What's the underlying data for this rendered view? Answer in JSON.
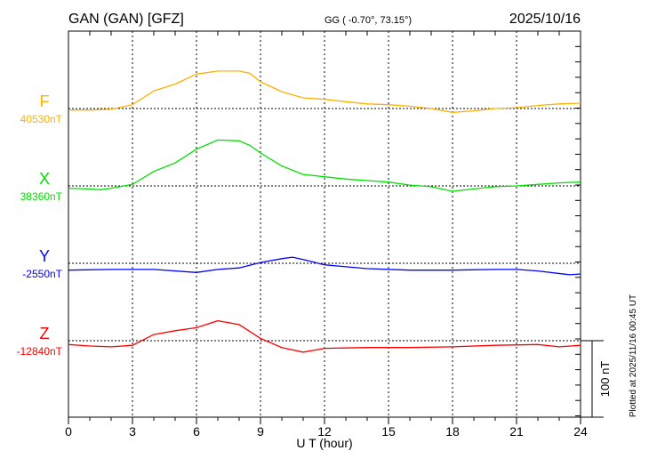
{
  "chart_data": {
    "type": "line",
    "title": "GAN (GAN)  [GFZ]",
    "coordinates": "GG ( -0.70°,  73.15°)",
    "date": "2025/10/16",
    "xlabel": "U T (hour)",
    "xlim": [
      0,
      24
    ],
    "xticks": [
      "0",
      "3",
      "6",
      "9",
      "12",
      "15",
      "18",
      "21",
      "24"
    ],
    "scale_label": "100 nT",
    "scale_nT": 100,
    "footer": "Plotted at 2025/11/16 00:45 UT",
    "grid": true,
    "series": [
      {
        "name": "F",
        "baseline_label": "40530nT",
        "color": "#ffb000",
        "x": [
          0,
          1,
          2,
          3,
          4,
          5,
          6,
          7,
          8,
          8.5,
          9,
          10,
          11,
          12,
          13,
          14,
          15,
          16,
          17,
          18,
          19,
          20,
          21,
          22,
          23,
          24
        ],
        "y": [
          -2,
          -2,
          -1,
          5,
          23,
          32,
          45,
          49,
          49,
          46,
          35,
          22,
          14,
          12,
          9,
          6,
          5,
          3,
          0,
          -5,
          -3,
          0,
          1,
          4,
          6,
          7
        ]
      },
      {
        "name": "X",
        "baseline_label": "38360nT",
        "color": "#00e000",
        "x": [
          0,
          1,
          1.5,
          2,
          3,
          4,
          5,
          6,
          7,
          8,
          8.5,
          9,
          10,
          11,
          12,
          13,
          14,
          15,
          16,
          17,
          18,
          19,
          20,
          21,
          22,
          23,
          24
        ],
        "y": [
          -3,
          -4,
          -5,
          -3,
          2,
          19,
          30,
          48,
          60,
          59,
          53,
          43,
          26,
          15,
          12,
          9,
          7,
          5,
          1,
          -1,
          -7,
          -4,
          -1,
          0,
          2,
          4,
          5
        ]
      },
      {
        "name": "Y",
        "baseline_label": "-2550nT",
        "color": "#0000ff",
        "x": [
          0,
          2,
          4,
          6,
          7,
          8,
          9,
          10,
          10.5,
          11,
          12,
          14,
          16,
          18,
          20,
          21,
          22,
          23.5,
          24
        ],
        "y": [
          -9,
          -8,
          -8,
          -12,
          -8,
          -6,
          1,
          6,
          8,
          5,
          -2,
          -7,
          -9,
          -9,
          -8,
          -8,
          -10,
          -15,
          -14
        ]
      },
      {
        "name": "Z",
        "baseline_label": "-12840nT",
        "color": "#ff0000",
        "x": [
          0,
          1,
          2,
          3,
          4,
          5,
          6,
          7,
          8,
          9,
          10,
          11,
          12,
          14,
          16,
          18,
          20,
          22,
          23,
          24
        ],
        "y": [
          -5,
          -7,
          -8,
          -6,
          8,
          13,
          17,
          26,
          21,
          3,
          -9,
          -15,
          -10,
          -9,
          -9,
          -8,
          -6,
          -5,
          -8,
          -6
        ]
      }
    ]
  }
}
